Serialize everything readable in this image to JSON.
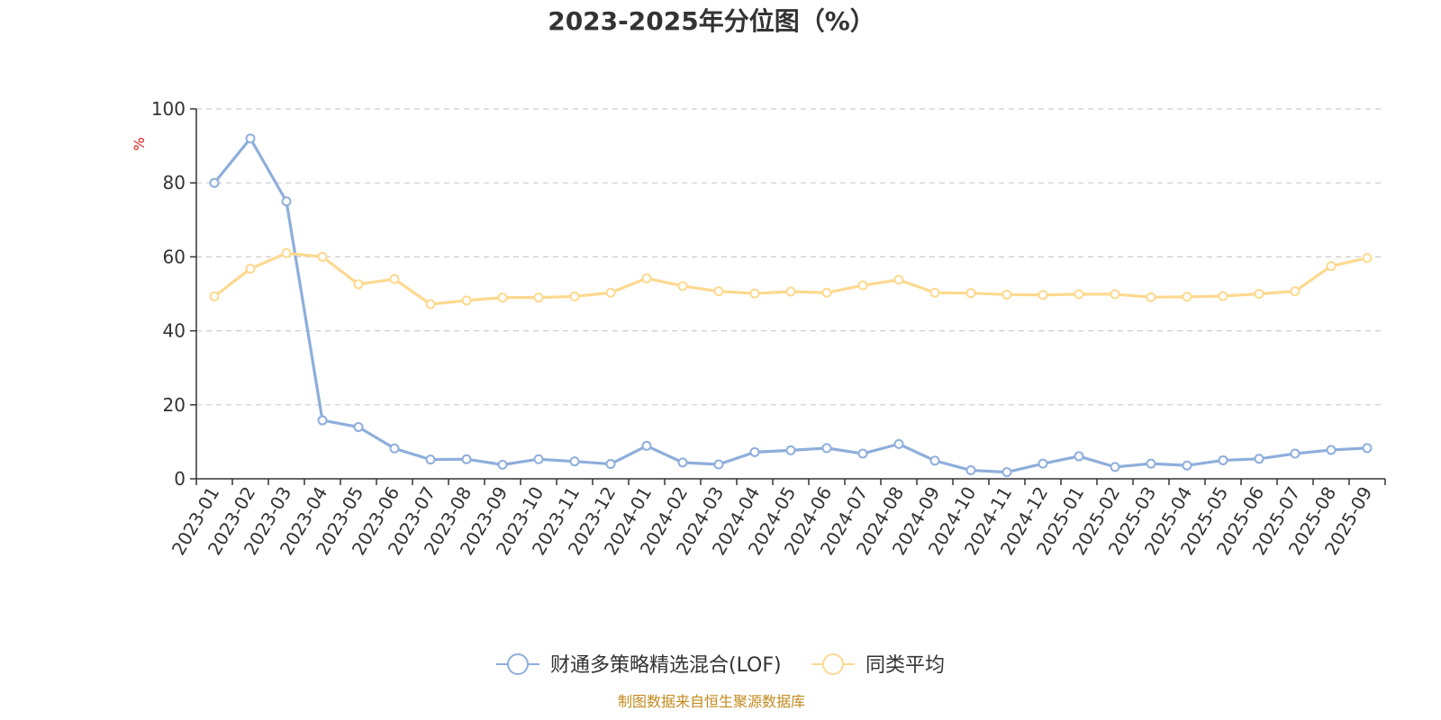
{
  "chart_data": {
    "type": "line",
    "title": "2023-2025年分位图（%）",
    "ylabel": "%",
    "ylim": [
      0,
      100
    ],
    "yticks": [
      0,
      20,
      40,
      60,
      80,
      100
    ],
    "grid": "horizontal dashed",
    "legend_position": "bottom",
    "categories": [
      "2023-01",
      "2023-02",
      "2023-03",
      "2023-04",
      "2023-05",
      "2023-06",
      "2023-07",
      "2023-08",
      "2023-09",
      "2023-10",
      "2023-11",
      "2023-12",
      "2024-01",
      "2024-02",
      "2024-03",
      "2024-04",
      "2024-05",
      "2024-06",
      "2024-07",
      "2024-08",
      "2024-09",
      "2024-10",
      "2024-11",
      "2024-12",
      "2025-01",
      "2025-02",
      "2025-03",
      "2025-04",
      "2025-05",
      "2025-06",
      "2025-07",
      "2025-08",
      "2025-09"
    ],
    "series": [
      {
        "name": "财通多策略精选混合(LOF)",
        "color": "#8eaedb",
        "values": [
          80,
          92,
          75,
          15.8,
          14,
          8.2,
          5.2,
          5.3,
          3.8,
          5.3,
          4.7,
          4,
          8.9,
          4.4,
          3.9,
          7.2,
          7.7,
          8.3,
          6.8,
          9.4,
          4.9,
          2.3,
          1.8,
          4.1,
          6.1,
          3.2,
          4.1,
          3.6,
          5,
          5.4,
          6.8,
          7.8,
          8.3
        ]
      },
      {
        "name": "同类平均",
        "color": "#fdd98f",
        "values": [
          49.3,
          56.8,
          61,
          60,
          52.6,
          54,
          47.2,
          48.2,
          49,
          49,
          49.3,
          50.3,
          54.2,
          52.1,
          50.7,
          50.1,
          50.6,
          50.3,
          52.3,
          53.8,
          50.3,
          50.2,
          49.8,
          49.7,
          49.9,
          49.9,
          49.1,
          49.2,
          49.4,
          50,
          50.7,
          57.5,
          59.7
        ]
      }
    ]
  },
  "source_note": "制图数据来自恒生聚源数据库"
}
